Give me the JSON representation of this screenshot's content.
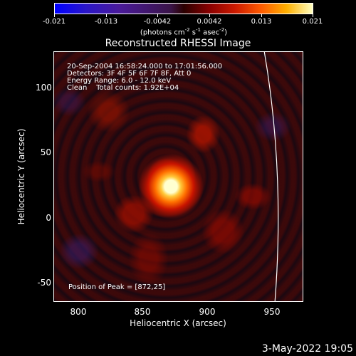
{
  "colorbar": {
    "tick_labels": [
      "-0.021",
      "-0.013",
      "-0.0042",
      "0.0042",
      "0.013",
      "0.021"
    ],
    "units_prefix": "(photons cm",
    "units_exp1": "-2",
    "units_mid": " s",
    "units_exp2": "-1",
    "units_mid2": " asec",
    "units_exp3": "-2",
    "units_suffix": ")"
  },
  "title": "Reconstructed RHESSI Image",
  "info": {
    "line1": "20-Sep-2004 16:58:24.000 to 17:01:56.000",
    "line2": "Detectors: 3F 4F 5F 6F 7F 8F, Att 0",
    "line3": "Energy Range: 6.0 - 12.0 keV",
    "line4": "Clean    Total counts: 1.92E+04"
  },
  "peak_label": "Position of Peak = [872,25]",
  "axes": {
    "x_ticks": [
      "800",
      "850",
      "900",
      "950"
    ],
    "y_ticks": [
      "100",
      "50",
      "0",
      "-50"
    ],
    "xlabel": "Heliocentric X (arcsec)",
    "ylabel": "Heliocentric Y (arcsec)"
  },
  "date_stamp": "3-May-2022 19:05"
}
